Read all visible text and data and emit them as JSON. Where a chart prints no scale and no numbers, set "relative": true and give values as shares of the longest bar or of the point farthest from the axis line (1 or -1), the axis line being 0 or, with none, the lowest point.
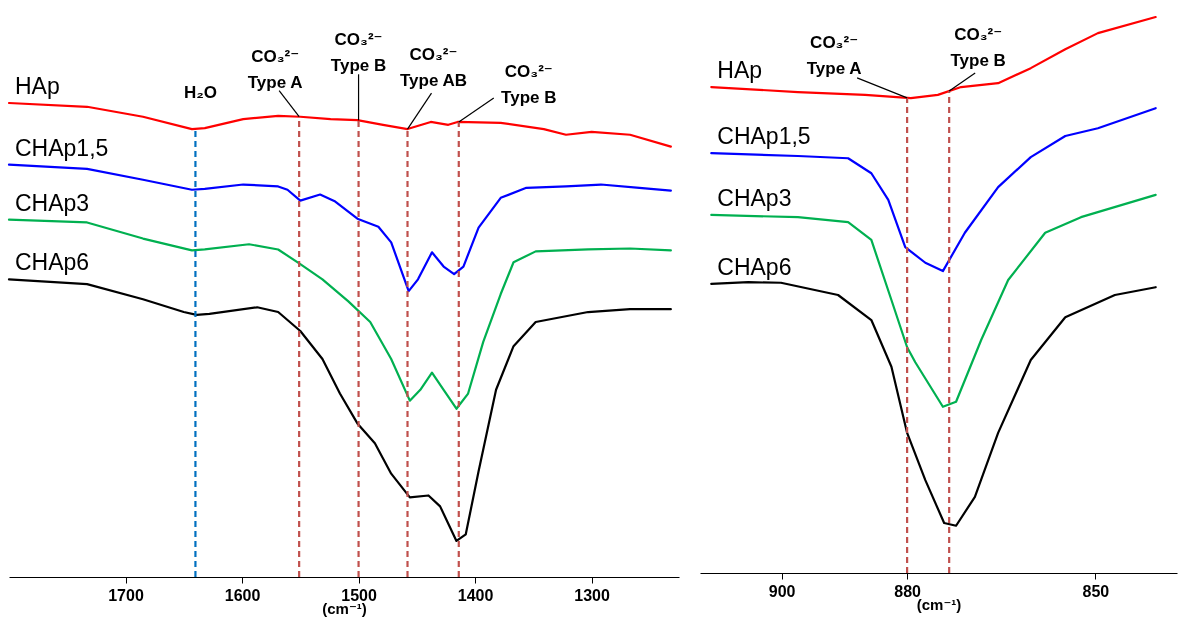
{
  "chart_data": [
    {
      "type": "line",
      "relative": true,
      "tick_labels": "x",
      "xlabel": "(cm⁻¹)",
      "xlim": [
        1800,
        1225
      ],
      "xticks": [
        1700,
        1600,
        1500,
        1400,
        1300
      ],
      "series": [
        {
          "name": "HAp",
          "color": "#ff0000",
          "x": [
            1800,
            1733,
            1685,
            1643,
            1632,
            1599,
            1569,
            1550,
            1524,
            1501,
            1479,
            1458,
            1438,
            1423,
            1415,
            1378,
            1341,
            1322,
            1300,
            1267,
            1232
          ],
          "values": [
            1,
            0.992,
            0.971,
            0.945,
            0.947,
            0.966,
            0.973,
            0.971,
            0.966,
            0.964,
            0.954,
            0.945,
            0.96,
            0.954,
            0.96,
            0.958,
            0.945,
            0.933,
            0.939,
            0.933,
            0.908
          ]
        },
        {
          "name": "CHAp1,5",
          "color": "#0000ff",
          "x": [
            1800,
            1733,
            1685,
            1643,
            1632,
            1599,
            1569,
            1561,
            1550,
            1533,
            1520,
            1501,
            1483,
            1472,
            1457,
            1449,
            1437,
            1427,
            1418,
            1410,
            1397,
            1378,
            1356,
            1322,
            1292,
            1259,
            1232
          ],
          "values": [
            0.87,
            0.861,
            0.838,
            0.817,
            0.819,
            0.828,
            0.824,
            0.817,
            0.794,
            0.807,
            0.792,
            0.756,
            0.739,
            0.706,
            0.603,
            0.628,
            0.685,
            0.655,
            0.639,
            0.655,
            0.737,
            0.8,
            0.821,
            0.824,
            0.828,
            0.821,
            0.815
          ]
        },
        {
          "name": "CHAp3",
          "color": "#00b050",
          "x": [
            1800,
            1733,
            1685,
            1643,
            1632,
            1594,
            1569,
            1550,
            1531,
            1509,
            1490,
            1472,
            1456,
            1447,
            1437,
            1427,
            1416,
            1406,
            1393,
            1378,
            1367,
            1348,
            1303,
            1267,
            1232
          ],
          "values": [
            0.754,
            0.748,
            0.714,
            0.689,
            0.691,
            0.702,
            0.691,
            0.66,
            0.628,
            0.582,
            0.538,
            0.46,
            0.372,
            0.395,
            0.431,
            0.395,
            0.355,
            0.387,
            0.496,
            0.597,
            0.664,
            0.687,
            0.691,
            0.693,
            0.689
          ]
        },
        {
          "name": "CHAp6",
          "color": "#000000",
          "x": [
            1800,
            1733,
            1685,
            1650,
            1639,
            1628,
            1587,
            1569,
            1550,
            1531,
            1516,
            1501,
            1486,
            1472,
            1456,
            1440,
            1430,
            1416,
            1408,
            1397,
            1382,
            1367,
            1348,
            1303,
            1267,
            1232
          ],
          "values": [
            0.628,
            0.618,
            0.586,
            0.559,
            0.553,
            0.555,
            0.569,
            0.559,
            0.519,
            0.46,
            0.387,
            0.324,
            0.282,
            0.218,
            0.168,
            0.172,
            0.149,
            0.076,
            0.09,
            0.223,
            0.395,
            0.487,
            0.538,
            0.559,
            0.565,
            0.565
          ]
        }
      ],
      "ref_lines": [
        {
          "axis": "x",
          "value": 1640,
          "label": "H₂O",
          "color": "#0070c0",
          "line_style": "dashed"
        },
        {
          "axis": "x",
          "value": 1551,
          "label": "CO₃²⁻ Type A",
          "color": "#c0504d",
          "line_style": "dashed"
        },
        {
          "axis": "x",
          "value": 1500,
          "label": "CO₃²⁻ Type B",
          "color": "#c0504d",
          "line_style": "dashed"
        },
        {
          "axis": "x",
          "value": 1458,
          "label": "CO₃²⁻ Type AB",
          "color": "#c0504d",
          "line_style": "dashed"
        },
        {
          "axis": "x",
          "value": 1414,
          "label": "CO₃²⁻ Type B",
          "color": "#c0504d",
          "line_style": "dashed"
        }
      ]
    },
    {
      "type": "line",
      "relative": true,
      "tick_labels": "x",
      "xlabel": "(cm⁻¹)",
      "xlim": [
        913,
        837
      ],
      "xticks": [
        900,
        880,
        850
      ],
      "series": [
        {
          "name": "HAp",
          "color": "#ff0000",
          "x": [
            911.2,
            897.4,
            886.7,
            879.4,
            875.1,
            871.4,
            865.5,
            860.3,
            854.8,
            849.6,
            840.4
          ],
          "values": [
            0.874,
            0.865,
            0.86,
            0.854,
            0.86,
            0.874,
            0.881,
            0.908,
            0.942,
            0.971,
            1
          ]
        },
        {
          "name": "CHAp1,5",
          "color": "#0000ff",
          "x": [
            911.2,
            897.4,
            889.4,
            885.7,
            883,
            880.3,
            877.1,
            874.3,
            870.8,
            865.5,
            860.3,
            854.8,
            849.6,
            840.4
          ],
          "values": [
            0.755,
            0.75,
            0.746,
            0.719,
            0.671,
            0.586,
            0.558,
            0.543,
            0.612,
            0.694,
            0.748,
            0.786,
            0.8,
            0.836
          ]
        },
        {
          "name": "CHAp3",
          "color": "#00b050",
          "x": [
            911.2,
            897.4,
            889.4,
            885.7,
            882.5,
            880,
            878.7,
            874.3,
            872.2,
            868.2,
            863.9,
            858,
            852.3,
            840.4
          ],
          "values": [
            0.644,
            0.64,
            0.631,
            0.599,
            0.491,
            0.406,
            0.379,
            0.299,
            0.308,
            0.419,
            0.527,
            0.612,
            0.64,
            0.68
          ]
        },
        {
          "name": "CHAp6",
          "color": "#000000",
          "x": [
            911.2,
            905.3,
            900.1,
            891,
            885.7,
            882.5,
            880,
            877.1,
            874.1,
            872.2,
            869.2,
            865.5,
            860.3,
            854.8,
            846.9,
            840.4
          ],
          "values": [
            0.52,
            0.523,
            0.522,
            0.5,
            0.455,
            0.371,
            0.252,
            0.167,
            0.09,
            0.085,
            0.137,
            0.252,
            0.383,
            0.46,
            0.5,
            0.514
          ]
        }
      ],
      "ref_lines": [
        {
          "axis": "x",
          "value": 880,
          "label": "CO₃²⁻ Type A",
          "color": "#c0504d",
          "line_style": "dashed"
        },
        {
          "axis": "x",
          "value": 873.3,
          "label": "CO₃²⁻ Type B",
          "color": "#c0504d",
          "line_style": "dashed"
        }
      ]
    }
  ]
}
